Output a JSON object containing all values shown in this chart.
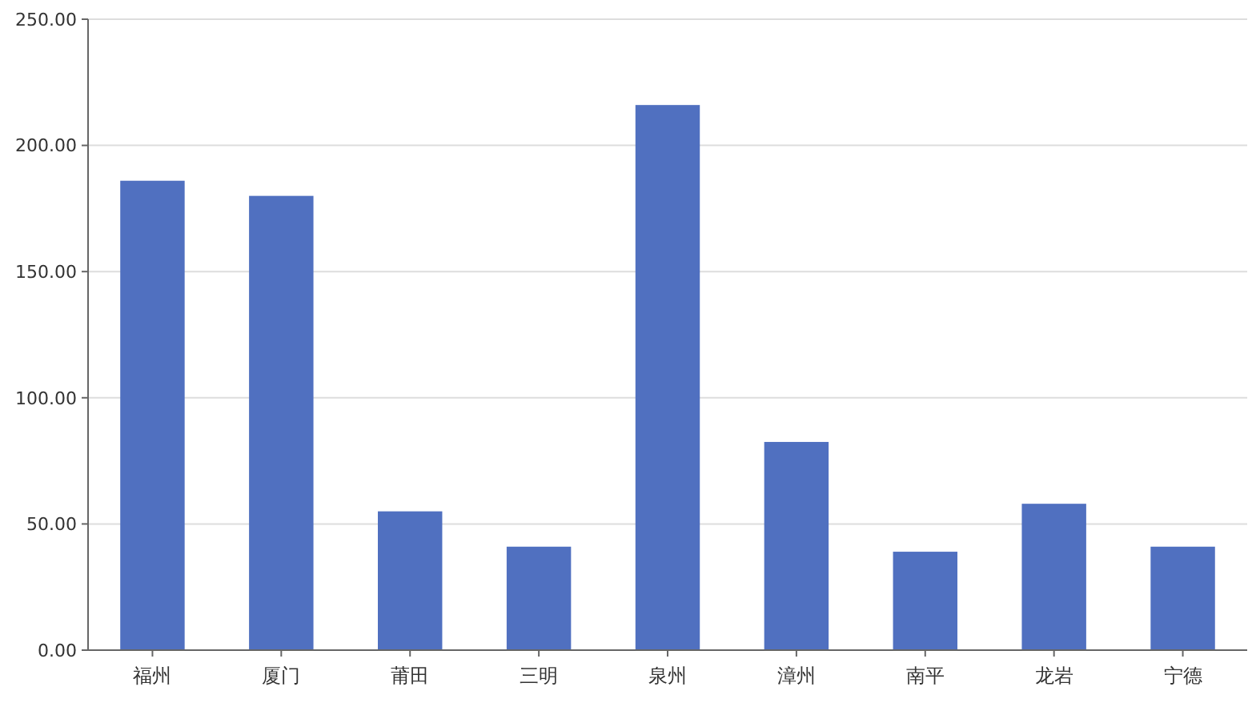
{
  "chart_data": {
    "type": "bar",
    "categories": [
      "福州",
      "厦门",
      "莆田",
      "三明",
      "泉州",
      "漳州",
      "南平",
      "龙岩",
      "宁德"
    ],
    "values": [
      186,
      180,
      55,
      41,
      216,
      82.5,
      39,
      58,
      41
    ],
    "color": "#5070c0",
    "ylim": [
      0,
      250
    ],
    "yticks": [
      {
        "value": 0,
        "label": "0.00"
      },
      {
        "value": 50,
        "label": "50.00"
      },
      {
        "value": 100,
        "label": "100.00"
      },
      {
        "value": 150,
        "label": "150.00"
      },
      {
        "value": 200,
        "label": "200.00"
      },
      {
        "value": 250,
        "label": "250.00"
      }
    ],
    "grid": "y"
  }
}
